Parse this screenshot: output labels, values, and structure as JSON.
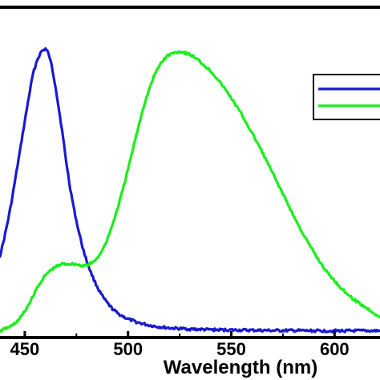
{
  "chart_data": {
    "type": "line",
    "title": "",
    "xlabel": "Wavelength (nm)",
    "ylabel": "",
    "xlim": [
      438,
      622
    ],
    "ylim": [
      -0.02,
      1.15
    ],
    "x_ticks": [
      450,
      500,
      550,
      600
    ],
    "x_tick_labels": [
      "450",
      "500",
      "550",
      "600"
    ],
    "grid": false,
    "legend": {
      "position": "top-right",
      "entries": [
        {
          "color": "#1a1ad0"
        },
        {
          "color": "#1aef1a"
        }
      ]
    },
    "series": [
      {
        "color": "#1a1ad0",
        "x": [
          438,
          440,
          442,
          444,
          446,
          448,
          450,
          452,
          454,
          456,
          458,
          460,
          461,
          462,
          463,
          464,
          465,
          466,
          468,
          470,
          472,
          474,
          476,
          478,
          480,
          482,
          484,
          486,
          488,
          490,
          492,
          495,
          500,
          505,
          510,
          515,
          520,
          525,
          530,
          540,
          550,
          560,
          570,
          580,
          590,
          600,
          610,
          622
        ],
        "y": [
          0.27,
          0.33,
          0.4,
          0.48,
          0.57,
          0.66,
          0.75,
          0.84,
          0.92,
          0.97,
          1.0,
          1.01,
          1.0,
          0.98,
          0.95,
          0.91,
          0.87,
          0.82,
          0.72,
          0.61,
          0.51,
          0.43,
          0.36,
          0.3,
          0.25,
          0.21,
          0.175,
          0.145,
          0.12,
          0.1,
          0.083,
          0.063,
          0.043,
          0.03,
          0.021,
          0.015,
          0.011,
          0.009,
          0.007,
          0.005,
          0.004,
          0.003,
          0.002,
          0.002,
          0.001,
          0.001,
          0.001,
          0.001
        ]
      },
      {
        "color": "#1aef1a",
        "x": [
          438,
          441,
          444,
          447,
          450,
          453,
          456,
          459,
          462,
          465,
          468,
          471,
          474,
          477,
          480,
          483,
          486,
          489,
          492,
          495,
          498,
          501,
          504,
          507,
          510,
          513,
          516,
          519,
          522,
          525,
          528,
          531,
          534,
          537,
          540,
          543,
          546,
          549,
          552,
          555,
          558,
          561,
          564,
          567,
          570,
          573,
          576,
          579,
          582,
          585,
          588,
          591,
          594,
          597,
          600,
          603,
          606,
          609,
          612,
          615,
          618,
          622
        ],
        "y": [
          0.0,
          0.01,
          0.02,
          0.04,
          0.07,
          0.11,
          0.155,
          0.19,
          0.215,
          0.23,
          0.24,
          0.24,
          0.24,
          0.235,
          0.235,
          0.245,
          0.27,
          0.31,
          0.37,
          0.44,
          0.52,
          0.61,
          0.7,
          0.79,
          0.86,
          0.92,
          0.96,
          0.985,
          0.995,
          1.0,
          0.995,
          0.985,
          0.97,
          0.95,
          0.93,
          0.905,
          0.875,
          0.845,
          0.81,
          0.775,
          0.735,
          0.695,
          0.655,
          0.61,
          0.565,
          0.52,
          0.475,
          0.43,
          0.385,
          0.345,
          0.305,
          0.27,
          0.235,
          0.205,
          0.18,
          0.155,
          0.135,
          0.115,
          0.1,
          0.085,
          0.07,
          0.05
        ]
      }
    ]
  }
}
